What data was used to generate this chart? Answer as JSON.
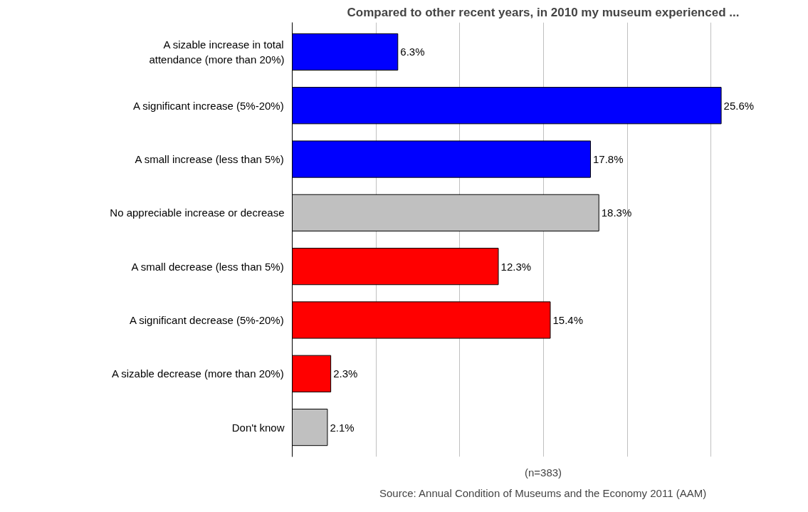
{
  "chart_data": {
    "type": "bar",
    "orientation": "horizontal",
    "title": "Compared to other recent years, in 2010 my museum experienced ...",
    "categories": [
      "A sizable increase in total\nattendance (more than 20%)",
      "A significant increase (5%-20%)",
      "A small increase (less than 5%)",
      "No appreciable increase or decrease",
      "A small decrease (less than 5%)",
      "A significant decrease (5%-20%)",
      "A sizable decrease (more than 20%)",
      "Don't know"
    ],
    "values": [
      6.3,
      25.6,
      17.8,
      18.3,
      12.3,
      15.4,
      2.3,
      2.1
    ],
    "colors": [
      "#0000ff",
      "#0000ff",
      "#0000ff",
      "#c0c0c0",
      "#ff0000",
      "#ff0000",
      "#ff0000",
      "#c0c0c0"
    ],
    "value_labels": [
      "6.3%",
      "25.6%",
      "17.8%",
      "18.3%",
      "12.3%",
      "15.4%",
      "2.3%",
      "2.1%"
    ],
    "grid": "x",
    "tick_labels": "y",
    "annotations": [
      "(n=383)",
      "Source: Annual Condition of Museums and the Economy 2011 (AAM)"
    ]
  }
}
